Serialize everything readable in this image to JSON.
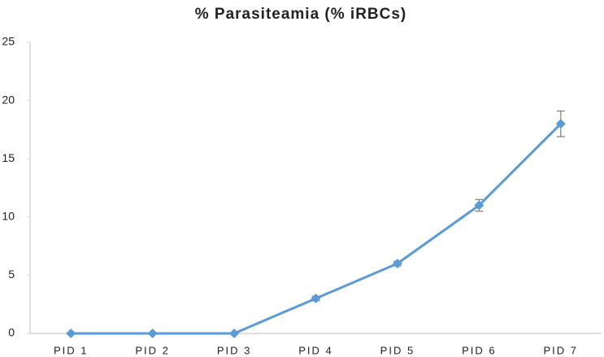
{
  "chart_data": {
    "type": "line",
    "title": "% Parasiteamia (% iRBCs)",
    "categories": [
      "PID 1",
      "PID 2",
      "PID 3",
      "PID 4",
      "PID 5",
      "PID 6",
      "PID 7"
    ],
    "values": [
      0,
      0,
      0,
      3,
      6,
      11,
      18
    ],
    "errors": [
      0,
      0,
      0,
      0.2,
      0.2,
      0.5,
      1.1
    ],
    "color": "#5b9bd5",
    "error_color": "#7f7f7f",
    "ylim": [
      0,
      25
    ],
    "yticks": [
      0,
      5,
      10,
      15,
      20,
      25
    ],
    "grid": false
  }
}
